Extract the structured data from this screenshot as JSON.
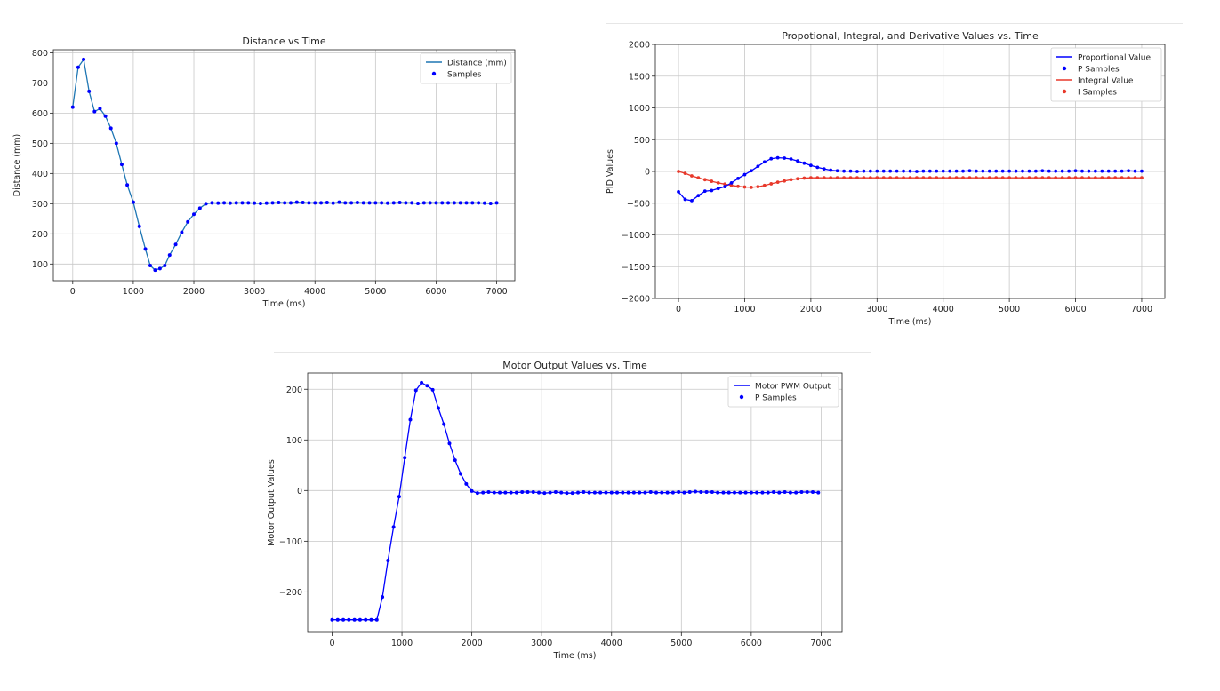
{
  "chart_data": [
    {
      "type": "line",
      "title": "Distance vs Time",
      "xlabel": "Time (ms)",
      "ylabel": "Distance (mm)",
      "xlim": [
        -320,
        7300
      ],
      "ylim": [
        45,
        810
      ],
      "xticks": [
        0,
        1000,
        2000,
        3000,
        4000,
        5000,
        6000,
        7000
      ],
      "yticks": [
        100,
        200,
        300,
        400,
        500,
        600,
        700,
        800
      ],
      "grid": true,
      "legend_position": "top-right",
      "line_color": "#1f77b4",
      "marker_color": "#0000ff",
      "legend": [
        "Distance (mm)",
        "Samples"
      ],
      "x": [
        0,
        90,
        180,
        270,
        360,
        450,
        540,
        630,
        720,
        810,
        900,
        1000,
        1100,
        1200,
        1280,
        1360,
        1440,
        1520,
        1600,
        1700,
        1800,
        1900,
        2000,
        2100,
        2200,
        2300,
        2400,
        2500,
        2600,
        2700,
        2800,
        2900,
        3000,
        3100,
        3200,
        3300,
        3400,
        3500,
        3600,
        3700,
        3800,
        3900,
        4000,
        4100,
        4200,
        4300,
        4400,
        4500,
        4600,
        4700,
        4800,
        4900,
        5000,
        5100,
        5200,
        5300,
        5400,
        5500,
        5600,
        5700,
        5800,
        5900,
        6000,
        6100,
        6200,
        6300,
        6400,
        6500,
        6600,
        6700,
        6800,
        6900,
        7000
      ],
      "series": [
        {
          "name": "Distance (mm)",
          "values": [
            620,
            752,
            778,
            672,
            605,
            615,
            590,
            550,
            500,
            430,
            362,
            305,
            225,
            150,
            95,
            80,
            85,
            95,
            130,
            165,
            205,
            240,
            265,
            285,
            300,
            303,
            302,
            303,
            302,
            303,
            303,
            303,
            302,
            301,
            302,
            303,
            304,
            303,
            303,
            305,
            304,
            303,
            303,
            303,
            304,
            302,
            305,
            303,
            303,
            304,
            303,
            303,
            303,
            303,
            302,
            303,
            304,
            303,
            303,
            301,
            303,
            303,
            303,
            303,
            303,
            303,
            303,
            303,
            303,
            303,
            302,
            301,
            303
          ]
        }
      ]
    },
    {
      "type": "line",
      "title": "Propotional, Integral, and Derivative Values vs. Time",
      "xlabel": "Time (ms)",
      "ylabel": "PID Values",
      "xlim": [
        -350,
        7350
      ],
      "ylim": [
        -2000,
        2000
      ],
      "xticks": [
        0,
        1000,
        2000,
        3000,
        4000,
        5000,
        6000,
        7000
      ],
      "yticks": [
        -2000,
        -1500,
        -1000,
        -500,
        0,
        500,
        1000,
        1500,
        2000
      ],
      "grid": true,
      "legend_position": "top-right",
      "legend": [
        "Proportional Value",
        "P Samples",
        "Integral Value",
        "I Samples"
      ],
      "colors": {
        "p": "#0000ff",
        "i": "#e8392b"
      },
      "x": [
        0,
        100,
        200,
        300,
        400,
        500,
        600,
        700,
        800,
        900,
        1000,
        1100,
        1200,
        1300,
        1400,
        1500,
        1600,
        1700,
        1800,
        1900,
        2000,
        2100,
        2200,
        2300,
        2400,
        2500,
        2600,
        2700,
        2800,
        2900,
        3000,
        3100,
        3200,
        3300,
        3400,
        3500,
        3600,
        3700,
        3800,
        3900,
        4000,
        4100,
        4200,
        4300,
        4400,
        4500,
        4600,
        4700,
        4800,
        4900,
        5000,
        5100,
        5200,
        5300,
        5400,
        5500,
        5600,
        5700,
        5800,
        5900,
        6000,
        6100,
        6200,
        6300,
        6400,
        6500,
        6600,
        6700,
        6800,
        6900,
        7000
      ],
      "series": [
        {
          "name": "Proportional Value",
          "values": [
            -320,
            -440,
            -460,
            -380,
            -310,
            -300,
            -270,
            -240,
            -180,
            -110,
            -50,
            10,
            80,
            150,
            200,
            215,
            210,
            195,
            165,
            130,
            95,
            65,
            40,
            20,
            10,
            5,
            5,
            0,
            5,
            5,
            5,
            5,
            5,
            5,
            5,
            5,
            0,
            5,
            5,
            5,
            5,
            5,
            5,
            5,
            10,
            5,
            5,
            5,
            5,
            5,
            5,
            5,
            5,
            5,
            5,
            10,
            5,
            5,
            5,
            5,
            10,
            5,
            5,
            5,
            5,
            5,
            5,
            5,
            10,
            5,
            5
          ]
        },
        {
          "name": "Integral Value",
          "values": [
            0,
            -30,
            -70,
            -100,
            -130,
            -155,
            -180,
            -200,
            -220,
            -235,
            -245,
            -250,
            -240,
            -220,
            -195,
            -170,
            -150,
            -130,
            -115,
            -105,
            -100,
            -100,
            -100,
            -100,
            -100,
            -100,
            -100,
            -100,
            -100,
            -100,
            -100,
            -100,
            -100,
            -100,
            -100,
            -100,
            -100,
            -100,
            -100,
            -100,
            -100,
            -100,
            -100,
            -100,
            -100,
            -100,
            -100,
            -100,
            -100,
            -100,
            -100,
            -100,
            -100,
            -100,
            -100,
            -100,
            -100,
            -100,
            -100,
            -100,
            -100,
            -100,
            -100,
            -100,
            -100,
            -100,
            -100,
            -100,
            -100,
            -100,
            -100
          ]
        }
      ]
    },
    {
      "type": "line",
      "title": "Motor Output Values vs. Time",
      "xlabel": "Time (ms)",
      "ylabel": "Motor Output Values",
      "xlim": [
        -350,
        7300
      ],
      "ylim": [
        -280,
        232
      ],
      "xticks": [
        0,
        1000,
        2000,
        3000,
        4000,
        5000,
        6000,
        7000
      ],
      "yticks": [
        -200,
        -100,
        0,
        100,
        200
      ],
      "grid": true,
      "legend_position": "top-right",
      "legend": [
        "Motor PWM Output",
        "P Samples"
      ],
      "color": "#0000ff",
      "x": [
        0,
        80,
        160,
        240,
        320,
        400,
        480,
        560,
        640,
        720,
        800,
        880,
        960,
        1040,
        1120,
        1200,
        1280,
        1360,
        1440,
        1520,
        1600,
        1680,
        1760,
        1840,
        1920,
        2000,
        2080,
        2160,
        2240,
        2320,
        2400,
        2480,
        2560,
        2640,
        2720,
        2800,
        2880,
        2960,
        3040,
        3120,
        3200,
        3280,
        3360,
        3440,
        3520,
        3600,
        3680,
        3760,
        3840,
        3920,
        4000,
        4080,
        4160,
        4240,
        4320,
        4400,
        4480,
        4560,
        4640,
        4720,
        4800,
        4880,
        4960,
        5040,
        5120,
        5200,
        5280,
        5360,
        5440,
        5520,
        5600,
        5680,
        5760,
        5840,
        5920,
        6000,
        6080,
        6160,
        6240,
        6320,
        6400,
        6480,
        6560,
        6640,
        6720,
        6800,
        6880,
        6960
      ],
      "series": [
        {
          "name": "Motor PWM Output",
          "values": [
            -255,
            -255,
            -255,
            -255,
            -255,
            -255,
            -255,
            -255,
            -255,
            -210,
            -138,
            -72,
            -12,
            65,
            140,
            198,
            213,
            207,
            199,
            163,
            131,
            93,
            60,
            33,
            13,
            -1,
            -5,
            -4,
            -3,
            -4,
            -4,
            -4,
            -4,
            -4,
            -3,
            -3,
            -3,
            -4,
            -5,
            -4,
            -3,
            -4,
            -5,
            -5,
            -4,
            -3,
            -4,
            -4,
            -4,
            -4,
            -4,
            -4,
            -4,
            -4,
            -4,
            -4,
            -4,
            -3,
            -4,
            -4,
            -4,
            -4,
            -3,
            -4,
            -3,
            -2,
            -3,
            -3,
            -3,
            -4,
            -4,
            -4,
            -4,
            -4,
            -4,
            -4,
            -4,
            -4,
            -4,
            -3,
            -4,
            -3,
            -4,
            -4,
            -3,
            -3,
            -3,
            -4
          ]
        }
      ]
    }
  ]
}
